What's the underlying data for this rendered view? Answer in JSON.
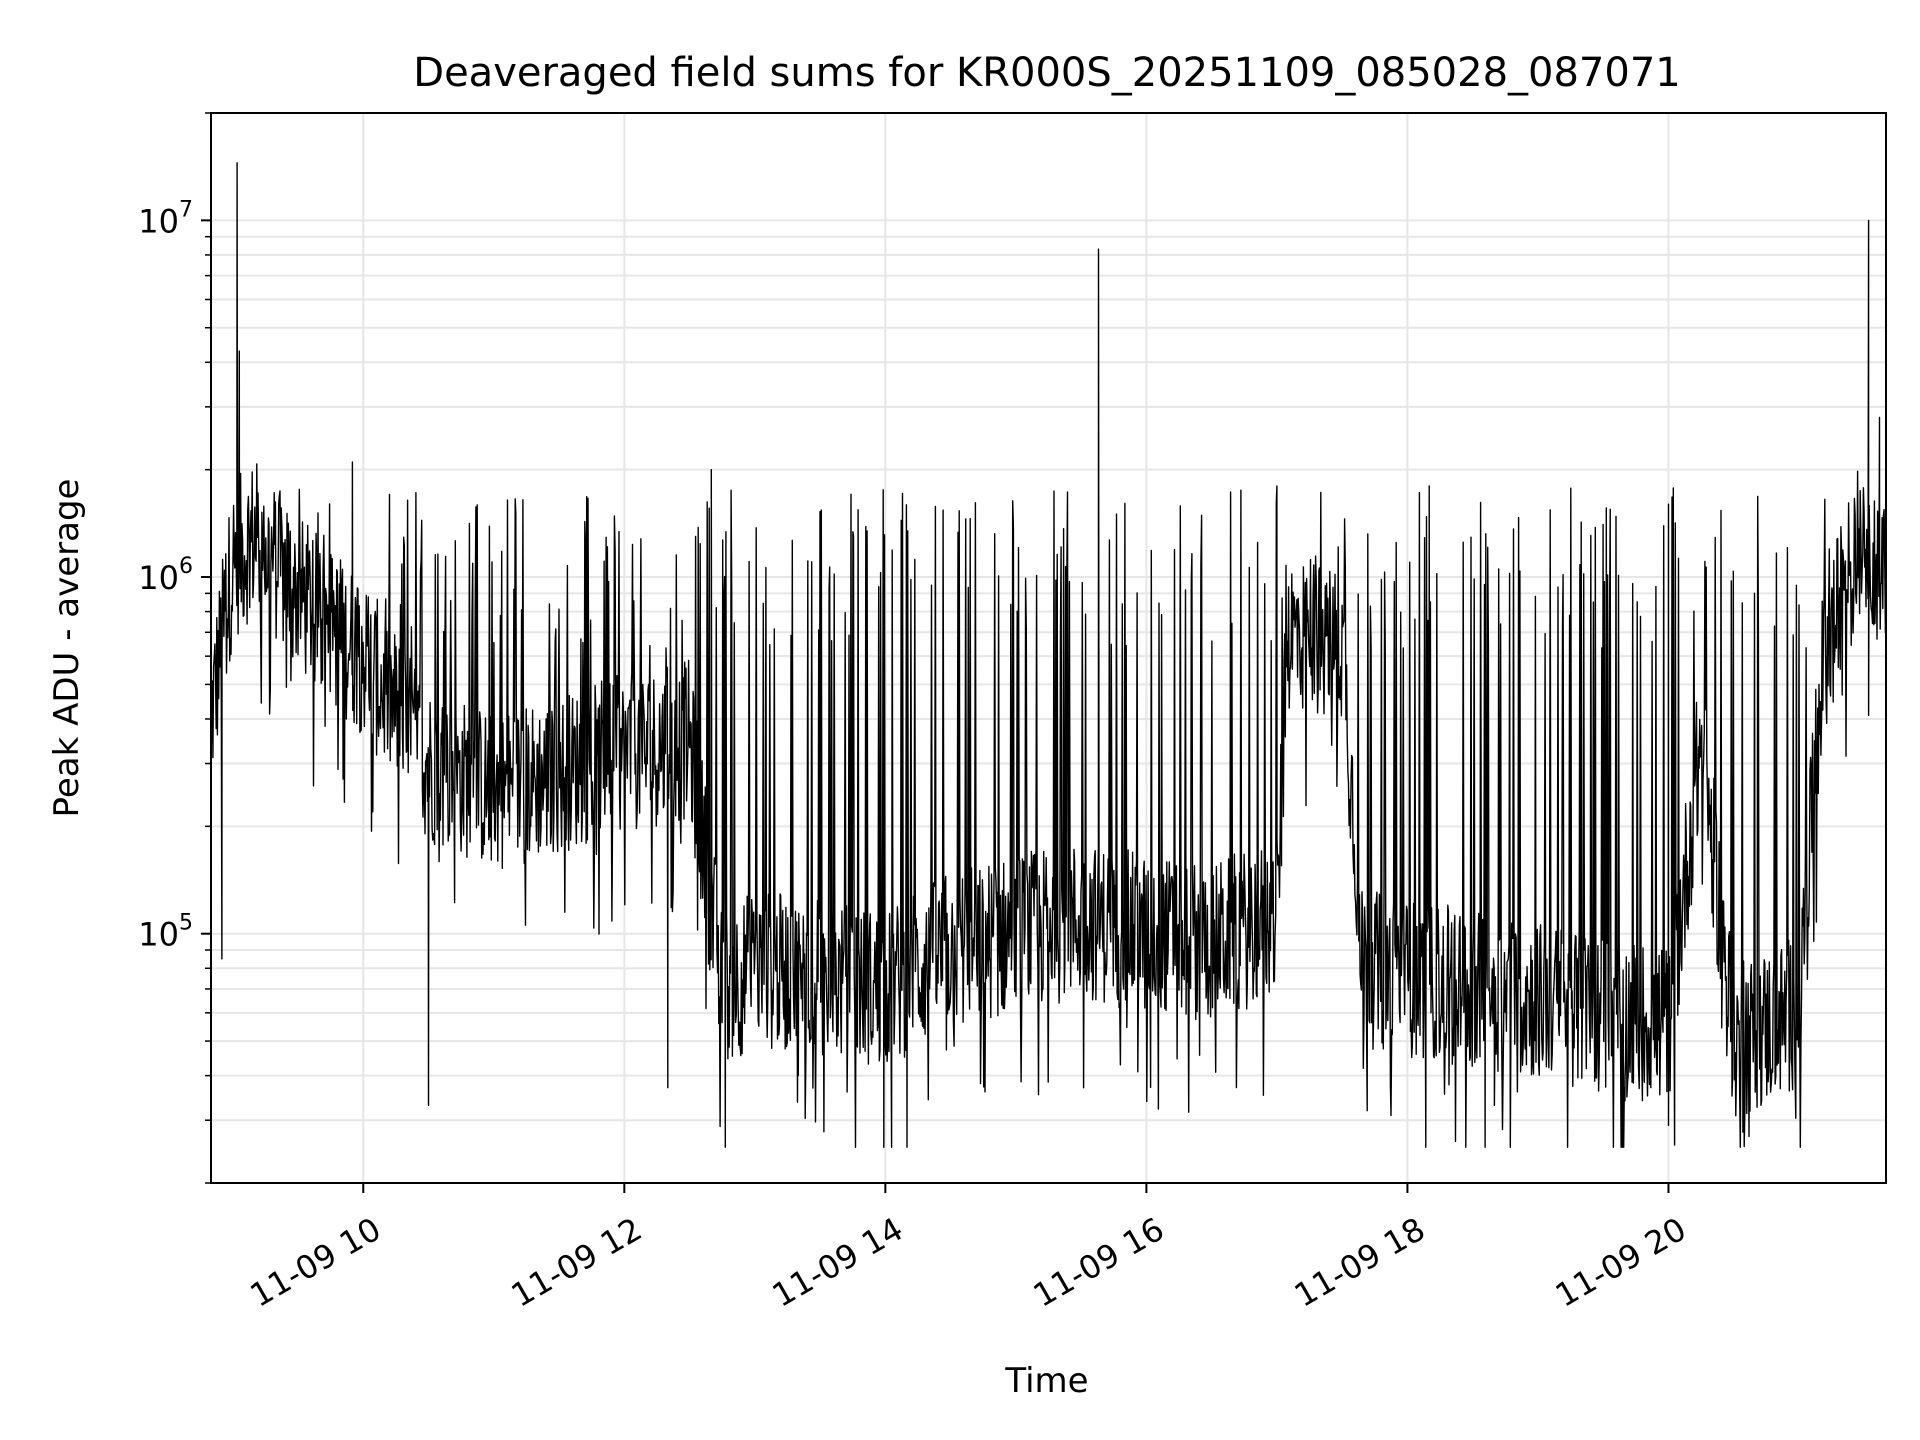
{
  "chart_data": {
    "type": "line",
    "title": "Deaveraged field sums for KR000S_20251109_085028_087071",
    "xlabel": "Time",
    "ylabel": "Peak ADU - average",
    "yscale": "log",
    "ylim": [
      20000,
      20000000
    ],
    "xlim": [
      "2025-11-09T08:50:00",
      "2025-11-09T21:40:00"
    ],
    "grid": true,
    "x_ticks": [
      {
        "value": "2025-11-09T10:00:00",
        "label": "11-09 10"
      },
      {
        "value": "2025-11-09T12:00:00",
        "label": "11-09 12"
      },
      {
        "value": "2025-11-09T14:00:00",
        "label": "11-09 14"
      },
      {
        "value": "2025-11-09T16:00:00",
        "label": "11-09 16"
      },
      {
        "value": "2025-11-09T18:00:00",
        "label": "11-09 18"
      },
      {
        "value": "2025-11-09T20:00:00",
        "label": "11-09 20"
      }
    ],
    "y_ticks": [
      {
        "value": 100000,
        "base": "10",
        "exp": "5"
      },
      {
        "value": 1000000,
        "base": "10",
        "exp": "6"
      },
      {
        "value": 10000000,
        "base": "10",
        "exp": "7"
      }
    ],
    "line_color": "#000000",
    "grid_color": "#e6e6e6",
    "series": [
      {
        "values_note": "",
        "baseline": [
          [
            "2025-11-09T08:50:00",
            400000
          ],
          [
            "2025-11-09T09:00:00",
            1100000
          ],
          [
            "2025-11-09T09:10:00",
            1300000
          ],
          [
            "2025-11-09T09:30:00",
            900000
          ],
          [
            "2025-11-09T10:00:00",
            600000
          ],
          [
            "2025-11-09T10:30:00",
            300000
          ],
          [
            "2025-11-09T11:00:00",
            250000
          ],
          [
            "2025-11-09T11:30:00",
            280000
          ],
          [
            "2025-11-09T12:00:00",
            320000
          ],
          [
            "2025-11-09T12:30:00",
            350000
          ],
          [
            "2025-11-09T12:45:00",
            70000
          ],
          [
            "2025-11-09T13:00:00",
            80000
          ],
          [
            "2025-11-09T13:30:00",
            75000
          ],
          [
            "2025-11-09T14:00:00",
            70000
          ],
          [
            "2025-11-09T14:30:00",
            90000
          ],
          [
            "2025-11-09T15:00:00",
            100000
          ],
          [
            "2025-11-09T15:30:00",
            110000
          ],
          [
            "2025-11-09T16:00:00",
            100000
          ],
          [
            "2025-11-09T16:30:00",
            95000
          ],
          [
            "2025-11-09T17:00:00",
            110000
          ],
          [
            "2025-11-09T17:05:00",
            700000
          ],
          [
            "2025-11-09T17:30:00",
            650000
          ],
          [
            "2025-11-09T17:40:00",
            80000
          ],
          [
            "2025-11-09T18:00:00",
            75000
          ],
          [
            "2025-11-09T18:30:00",
            70000
          ],
          [
            "2025-11-09T19:00:00",
            65000
          ],
          [
            "2025-11-09T19:30:00",
            60000
          ],
          [
            "2025-11-09T20:00:00",
            55000
          ],
          [
            "2025-11-09T20:15:00",
            350000
          ],
          [
            "2025-11-09T20:30:00",
            50000
          ],
          [
            "2025-11-09T21:00:00",
            60000
          ],
          [
            "2025-11-09T21:10:00",
            500000
          ],
          [
            "2025-11-09T21:20:00",
            900000
          ],
          [
            "2025-11-09T21:30:00",
            1400000
          ],
          [
            "2025-11-09T21:40:00",
            900000
          ]
        ],
        "peaks": [
          [
            "2025-11-09T09:02:00",
            14500000
          ],
          [
            "2025-11-09T09:03:00",
            4300000
          ],
          [
            "2025-11-09T09:55:00",
            2100000
          ],
          [
            "2025-11-09T12:40:00",
            2000000
          ],
          [
            "2025-11-09T15:38:00",
            8300000
          ],
          [
            "2025-11-09T17:00:00",
            1800000
          ],
          [
            "2025-11-09T18:10:00",
            1800000
          ],
          [
            "2025-11-09T20:00:00",
            1600000
          ],
          [
            "2025-11-09T21:32:00",
            10000000
          ],
          [
            "2025-11-09T21:37:00",
            2800000
          ]
        ],
        "troughs": [
          [
            "2025-11-09T08:55:00",
            85000
          ],
          [
            "2025-11-09T10:30:00",
            33000
          ],
          [
            "2025-11-09T12:20:00",
            37000
          ],
          [
            "2025-11-09T13:20:00",
            40000
          ],
          [
            "2025-11-09T14:10:00",
            38000
          ],
          [
            "2025-11-09T18:40:00",
            33000
          ],
          [
            "2025-11-09T19:40:00",
            34000
          ],
          [
            "2025-11-09T20:00:00",
            29000
          ],
          [
            "2025-11-09T20:37:00",
            27000
          ]
        ]
      }
    ]
  }
}
